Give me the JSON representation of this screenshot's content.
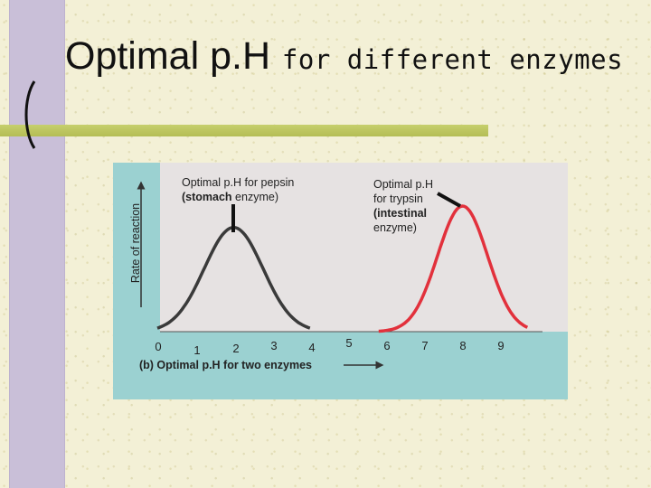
{
  "slide": {
    "title_main": "Optimal p.H",
    "title_rest": "for different enzymes"
  },
  "chart_data": {
    "type": "line",
    "xlabel": "(b) Optimal p.H for two enzymes",
    "ylabel": "Rate of reaction",
    "xlim": [
      0,
      9
    ],
    "x_ticks": [
      "0",
      "1",
      "2",
      "3",
      "4",
      "5",
      "6",
      "7",
      "8",
      "9"
    ],
    "series": [
      {
        "name": "pepsin",
        "color": "#3a3a3a",
        "peak_x": 2,
        "start_x": 0.0,
        "end_x": 4.0,
        "peak_rate": 0.83
      },
      {
        "name": "trypsin",
        "color": "#e2313c",
        "peak_x": 8,
        "start_x": 5.8,
        "end_x": 9.7,
        "peak_rate": 1.0
      }
    ],
    "annotations": {
      "pepsin": {
        "line1": "Optimal p.H for pepsin",
        "line2_bold": "(stomach",
        "line2_rest": " enzyme)"
      },
      "trypsin": {
        "line1": "Optimal p.H",
        "line2": "for trypsin",
        "line3_bold": "(intestinal",
        "line4": "enzyme)"
      }
    }
  },
  "colors": {
    "panel_bg": "#9bd1d1",
    "plot_bg": "#e6e2e2",
    "purple_band": "#c9bfd8",
    "green_rule": "#c6cf6c"
  }
}
